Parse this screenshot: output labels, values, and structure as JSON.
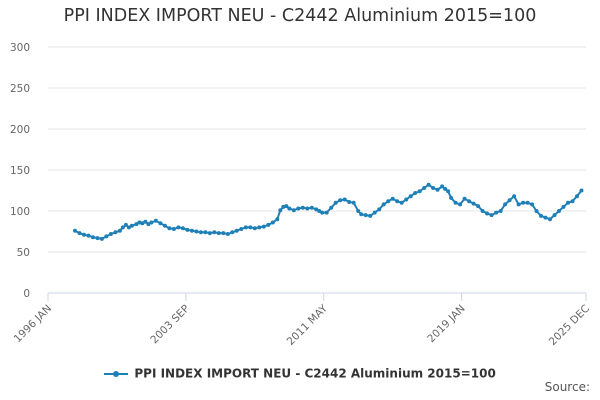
{
  "page": {
    "source_label": "Source:"
  },
  "colors": {
    "series": "#1f80b8",
    "grid": "#e6e6e6",
    "axis": "#ccd6eb"
  },
  "chart_data": {
    "type": "line",
    "title": "PPI INDEX IMPORT NEU - C2442 Aluminium 2015=100",
    "xlabel": "",
    "ylabel": "",
    "ylim": [
      0,
      300
    ],
    "y_ticks": [
      0,
      50,
      100,
      150,
      200,
      250,
      300
    ],
    "x_tick_labels": [
      "1996 JAN",
      "2003 SEP",
      "2011 MAY",
      "2019 JAN",
      "2025 DEC"
    ],
    "x_tick_dates": [
      "1996-01",
      "2003-09",
      "2011-05",
      "2019-01",
      "2025-12"
    ],
    "x_range": [
      "1996-01",
      "2025-12"
    ],
    "grid": true,
    "legend_position": "bottom-center",
    "series": [
      {
        "name": "PPI INDEX IMPORT NEU - C2442 Aluminium 2015=100",
        "points": [
          [
            "1997-07",
            76
          ],
          [
            "1997-10",
            73
          ],
          [
            "1998-01",
            71
          ],
          [
            "1998-04",
            70
          ],
          [
            "1998-07",
            68
          ],
          [
            "1998-10",
            67
          ],
          [
            "1999-01",
            66
          ],
          [
            "1999-04",
            69
          ],
          [
            "1999-07",
            72
          ],
          [
            "1999-10",
            74
          ],
          [
            "2000-01",
            76
          ],
          [
            "2000-03",
            80
          ],
          [
            "2000-05",
            83
          ],
          [
            "2000-07",
            80
          ],
          [
            "2000-09",
            82
          ],
          [
            "2000-12",
            84
          ],
          [
            "2001-02",
            86
          ],
          [
            "2001-04",
            85
          ],
          [
            "2001-06",
            87
          ],
          [
            "2001-08",
            84
          ],
          [
            "2001-10",
            86
          ],
          [
            "2002-01",
            88
          ],
          [
            "2002-04",
            85
          ],
          [
            "2002-07",
            82
          ],
          [
            "2002-10",
            79
          ],
          [
            "2003-01",
            78
          ],
          [
            "2003-04",
            80
          ],
          [
            "2003-07",
            79
          ],
          [
            "2003-10",
            77
          ],
          [
            "2004-01",
            76
          ],
          [
            "2004-04",
            75
          ],
          [
            "2004-07",
            74
          ],
          [
            "2004-10",
            74
          ],
          [
            "2005-01",
            73
          ],
          [
            "2005-04",
            74
          ],
          [
            "2005-07",
            73
          ],
          [
            "2005-10",
            73
          ],
          [
            "2006-01",
            72
          ],
          [
            "2006-04",
            74
          ],
          [
            "2006-07",
            76
          ],
          [
            "2006-10",
            78
          ],
          [
            "2007-01",
            80
          ],
          [
            "2007-04",
            80
          ],
          [
            "2007-07",
            79
          ],
          [
            "2007-10",
            80
          ],
          [
            "2008-01",
            81
          ],
          [
            "2008-04",
            83
          ],
          [
            "2008-07",
            86
          ],
          [
            "2008-10",
            90
          ],
          [
            "2008-12",
            101
          ],
          [
            "2009-02",
            105
          ],
          [
            "2009-04",
            106
          ],
          [
            "2009-06",
            103
          ],
          [
            "2009-09",
            101
          ],
          [
            "2009-12",
            103
          ],
          [
            "2010-03",
            104
          ],
          [
            "2010-06",
            103
          ],
          [
            "2010-09",
            104
          ],
          [
            "2010-12",
            102
          ],
          [
            "2011-02",
            100
          ],
          [
            "2011-04",
            98
          ],
          [
            "2011-07",
            98
          ],
          [
            "2011-10",
            104
          ],
          [
            "2012-01",
            110
          ],
          [
            "2012-04",
            113
          ],
          [
            "2012-07",
            114
          ],
          [
            "2012-10",
            111
          ],
          [
            "2013-01",
            110
          ],
          [
            "2013-04",
            100
          ],
          [
            "2013-06",
            96
          ],
          [
            "2013-09",
            95
          ],
          [
            "2013-12",
            94
          ],
          [
            "2014-03",
            98
          ],
          [
            "2014-06",
            102
          ],
          [
            "2014-09",
            108
          ],
          [
            "2014-12",
            112
          ],
          [
            "2015-03",
            115
          ],
          [
            "2015-06",
            112
          ],
          [
            "2015-09",
            110
          ],
          [
            "2015-12",
            114
          ],
          [
            "2016-03",
            118
          ],
          [
            "2016-06",
            122
          ],
          [
            "2016-09",
            124
          ],
          [
            "2016-12",
            128
          ],
          [
            "2017-03",
            132
          ],
          [
            "2017-06",
            128
          ],
          [
            "2017-09",
            126
          ],
          [
            "2017-12",
            130
          ],
          [
            "2018-02",
            127
          ],
          [
            "2018-04",
            124
          ],
          [
            "2018-06",
            116
          ],
          [
            "2018-09",
            110
          ],
          [
            "2018-12",
            108
          ],
          [
            "2019-03",
            115
          ],
          [
            "2019-06",
            112
          ],
          [
            "2019-09",
            109
          ],
          [
            "2019-12",
            106
          ],
          [
            "2020-03",
            100
          ],
          [
            "2020-06",
            97
          ],
          [
            "2020-09",
            95
          ],
          [
            "2020-12",
            98
          ],
          [
            "2021-03",
            100
          ],
          [
            "2021-06",
            108
          ],
          [
            "2021-09",
            113
          ],
          [
            "2021-12",
            118
          ],
          [
            "2022-03",
            108
          ],
          [
            "2022-06",
            110
          ],
          [
            "2022-09",
            110
          ],
          [
            "2022-12",
            108
          ],
          [
            "2023-03",
            100
          ],
          [
            "2023-06",
            94
          ],
          [
            "2023-09",
            92
          ],
          [
            "2023-12",
            90
          ],
          [
            "2024-03",
            95
          ],
          [
            "2024-06",
            100
          ],
          [
            "2024-09",
            105
          ],
          [
            "2024-12",
            110
          ],
          [
            "2025-03",
            112
          ],
          [
            "2025-06",
            118
          ],
          [
            "2025-09",
            125
          ]
        ]
      }
    ]
  }
}
